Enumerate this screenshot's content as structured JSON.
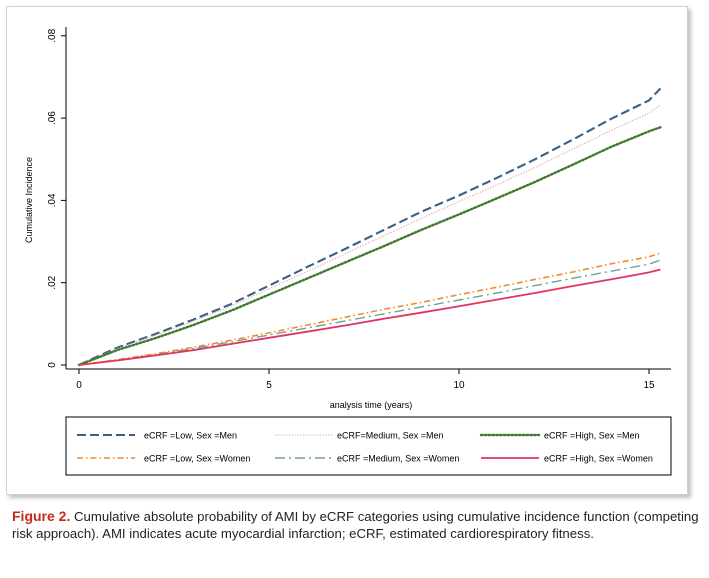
{
  "chart_data": {
    "type": "line",
    "title": "",
    "xlabel": "analysis time (years)",
    "ylabel": "Cumulative Incidence",
    "xlim": [
      0,
      15.5
    ],
    "ylim": [
      0,
      0.08
    ],
    "x_ticks": [
      0,
      5,
      10,
      15
    ],
    "x_tick_labels": [
      "0",
      "5",
      "10",
      "15"
    ],
    "y_ticks": [
      0,
      0.02,
      0.04,
      0.06,
      0.08
    ],
    "y_tick_labels": [
      "0",
      ".02",
      ".04",
      ".06",
      ".08"
    ],
    "grid": false,
    "legend_position": "bottom",
    "series": [
      {
        "name": "eCRF =Low,  Sex =Men",
        "color": "#3c5f86",
        "dash": "long-dash",
        "x": [
          0,
          1,
          2,
          3,
          4,
          5,
          6,
          7,
          8,
          9,
          10,
          11,
          12,
          13,
          14,
          15,
          15.3
        ],
        "y": [
          0,
          0.0042,
          0.0075,
          0.011,
          0.0148,
          0.0193,
          0.0238,
          0.0282,
          0.0327,
          0.0372,
          0.0412,
          0.0455,
          0.05,
          0.0548,
          0.0598,
          0.0643,
          0.0672
        ]
      },
      {
        "name": "eCRF=Medium, Sex =Men",
        "color": "#d9a2a8",
        "dash": "dotted",
        "x": [
          0,
          1,
          2,
          3,
          4,
          5,
          6,
          7,
          8,
          9,
          10,
          11,
          12,
          13,
          14,
          15,
          15.3
        ],
        "y": [
          0,
          0.004,
          0.0072,
          0.0106,
          0.0143,
          0.0185,
          0.0227,
          0.027,
          0.0313,
          0.0356,
          0.0397,
          0.0438,
          0.048,
          0.0525,
          0.057,
          0.0612,
          0.0632
        ]
      },
      {
        "name": "eCRF =High, Sex =Men",
        "color": "#3f7a2e",
        "dash": "dense-dot",
        "x": [
          0,
          1,
          2,
          3,
          4,
          5,
          6,
          7,
          8,
          9,
          10,
          11,
          12,
          13,
          14,
          15,
          15.3
        ],
        "y": [
          0,
          0.0036,
          0.0065,
          0.0097,
          0.0132,
          0.0171,
          0.021,
          0.0249,
          0.0288,
          0.0328,
          0.0366,
          0.0405,
          0.0445,
          0.0487,
          0.053,
          0.0568,
          0.0578
        ]
      },
      {
        "name": "eCRF =Low, Sex =Women",
        "color": "#f08a2a",
        "dash": "dash-dot",
        "x": [
          0,
          1,
          2,
          3,
          4,
          5,
          6,
          7,
          8,
          9,
          10,
          11,
          12,
          13,
          14,
          15,
          15.3
        ],
        "y": [
          0,
          0.0013,
          0.0027,
          0.0043,
          0.006,
          0.0078,
          0.0097,
          0.0116,
          0.0135,
          0.0152,
          0.0171,
          0.0189,
          0.0208,
          0.0226,
          0.0246,
          0.0263,
          0.0272
        ]
      },
      {
        "name": "eCRF =Medium, Sex =Women",
        "color": "#6fa39a",
        "dash": "long-dash-dot",
        "x": [
          0,
          1,
          2,
          3,
          4,
          5,
          6,
          7,
          8,
          9,
          10,
          11,
          12,
          13,
          14,
          15,
          15.3
        ],
        "y": [
          0,
          0.0012,
          0.0025,
          0.004,
          0.0056,
          0.0073,
          0.009,
          0.0107,
          0.0124,
          0.0141,
          0.0158,
          0.0175,
          0.0193,
          0.0211,
          0.0228,
          0.0245,
          0.0255
        ]
      },
      {
        "name": "eCRF =High, Sex =Women",
        "color": "#e0365e",
        "dash": "solid",
        "x": [
          0,
          1,
          2,
          3,
          4,
          5,
          6,
          7,
          8,
          9,
          10,
          11,
          12,
          13,
          14,
          15,
          15.3
        ],
        "y": [
          0,
          0.0011,
          0.0023,
          0.0036,
          0.0051,
          0.0066,
          0.0081,
          0.0096,
          0.0112,
          0.0127,
          0.0143,
          0.0159,
          0.0175,
          0.0192,
          0.0208,
          0.0225,
          0.0232
        ]
      }
    ]
  },
  "caption": {
    "label": "Figure 2.",
    "text": "Cumulative absolute probability of AMI by eCRF categories using cumulative incidence function (competing risk approach). AMI indicates acute myocardial infarction; eCRF, estimated cardiorespiratory fitness."
  }
}
